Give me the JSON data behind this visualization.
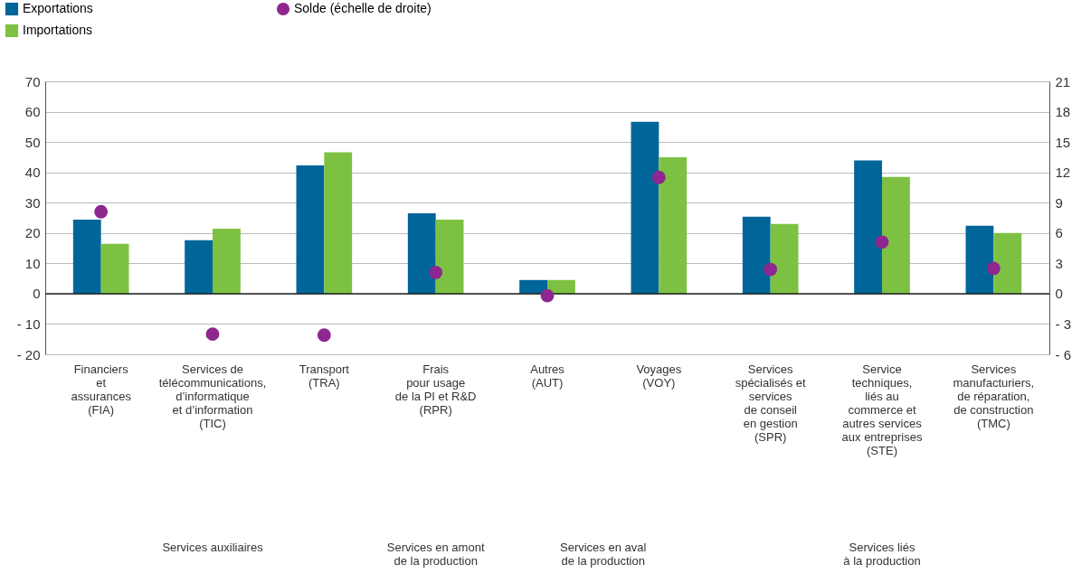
{
  "chart_data": {
    "type": "bar",
    "categories": [
      "Financiers\net\nassurances\n(FIA)",
      "Services de\ntélécommunications,\nd’informatique\net d’information\n(TIC)",
      "Transport\n(TRA)",
      "Frais\npour usage\nde la PI et R&D\n(RPR)",
      "Autres\n(AUT)",
      "Voyages\n(VOY)",
      "Services\nspécialisés et\nservices\nde conseil\nen gestion\n(SPR)",
      "Service\ntechniques,\nliés au\ncommerce et\nautres services\naux entreprises\n(STE)",
      "Services\nmanufacturiers,\nde réparation,\nde construction\n(TMC)"
    ],
    "series": [
      {
        "name": "Exportations",
        "color": "#00669a",
        "values": [
          24.4,
          17.6,
          42.3,
          26.5,
          4.5,
          56.7,
          25.4,
          43.9,
          22.4
        ]
      },
      {
        "name": "Importations",
        "color": "#7dc142",
        "values": [
          16.4,
          21.4,
          46.6,
          24.4,
          4.5,
          45.0,
          23.0,
          38.5,
          20.0
        ]
      },
      {
        "name": "Solde (échelle de droite)",
        "type": "scatter",
        "axis": "y2",
        "color": "#8e278f",
        "values": [
          8.1,
          -4.0,
          -4.1,
          2.1,
          -0.2,
          11.5,
          2.4,
          5.1,
          2.5
        ]
      }
    ],
    "ylim": [
      -20,
      70
    ],
    "yticks": [
      {
        "value": -20,
        "label": "- 20"
      },
      {
        "value": -10,
        "label": "- 10"
      },
      0,
      10,
      20,
      30,
      40,
      50,
      60,
      70
    ],
    "y2lim": [
      -6,
      21
    ],
    "y2ticks": [
      {
        "value": -6,
        "label": "- 6"
      },
      {
        "value": -3,
        "label": "- 3"
      },
      0,
      3,
      6,
      9,
      12,
      15,
      18,
      21
    ],
    "ref_lines": [
      {
        "axis": "y",
        "value": 0,
        "color": "#222222"
      }
    ],
    "grid": "y",
    "legend": "top left",
    "marker": "circle",
    "annotations": [
      "Services auxiliaires",
      "Services en amont\nde la production",
      "Services en aval\nde la production",
      "Services liés\nà la production"
    ]
  }
}
